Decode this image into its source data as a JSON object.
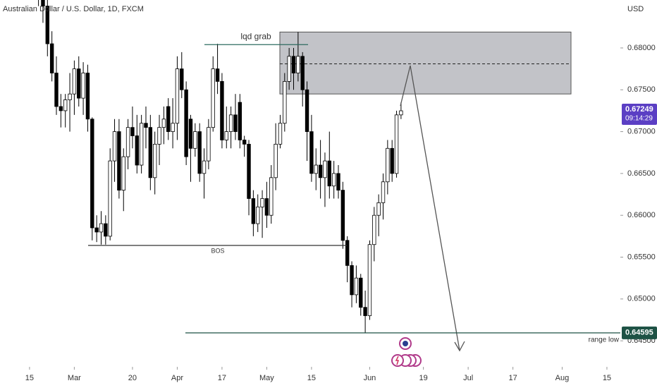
{
  "chart_data": {
    "type": "candlestick",
    "title": "Australian Dollar / U.S. Dollar, 1D, FXCM",
    "currency": "USD",
    "up_color": "#ffffff",
    "down_color": "#000000",
    "x": [
      2,
      3,
      4,
      5,
      6,
      7,
      8,
      9,
      10,
      11,
      12,
      13,
      14,
      15,
      16,
      17,
      18,
      19,
      20,
      21,
      22,
      23,
      24,
      25,
      26,
      27,
      28,
      29,
      30,
      31,
      32,
      33,
      34,
      35,
      36,
      37,
      38,
      39,
      40,
      41,
      42,
      43,
      44,
      45,
      46,
      47,
      48,
      49,
      50,
      51,
      52,
      53,
      54,
      55,
      56,
      57,
      58,
      59,
      60,
      61,
      62,
      63,
      64,
      65,
      66,
      67,
      68,
      69,
      70,
      71,
      72,
      73,
      74,
      75,
      76,
      77,
      78,
      79,
      80,
      81,
      82,
      83
    ],
    "ohlc": [
      [
        0.688,
        0.692,
        0.685,
        0.687
      ],
      [
        0.687,
        0.689,
        0.683,
        0.685
      ],
      [
        0.685,
        0.6865,
        0.679,
        0.6805
      ],
      [
        0.6805,
        0.682,
        0.676,
        0.677
      ],
      [
        0.677,
        0.679,
        0.672,
        0.673
      ],
      [
        0.673,
        0.6745,
        0.6705,
        0.6725
      ],
      [
        0.6725,
        0.6745,
        0.6705,
        0.6738
      ],
      [
        0.6738,
        0.677,
        0.67,
        0.6745
      ],
      [
        0.6745,
        0.6785,
        0.672,
        0.6775
      ],
      [
        0.6775,
        0.679,
        0.673,
        0.674
      ],
      [
        0.674,
        0.6783,
        0.672,
        0.677
      ],
      [
        0.677,
        0.678,
        0.67,
        0.6715
      ],
      [
        0.6715,
        0.6717,
        0.657,
        0.6585
      ],
      [
        0.6585,
        0.66,
        0.6568,
        0.658
      ],
      [
        0.658,
        0.6605,
        0.6565,
        0.659
      ],
      [
        0.659,
        0.66,
        0.6565,
        0.6575
      ],
      [
        0.6575,
        0.668,
        0.657,
        0.6665
      ],
      [
        0.6665,
        0.6715,
        0.664,
        0.67
      ],
      [
        0.67,
        0.6715,
        0.662,
        0.663
      ],
      [
        0.663,
        0.668,
        0.6605,
        0.667
      ],
      [
        0.667,
        0.6715,
        0.6655,
        0.6705
      ],
      [
        0.6705,
        0.673,
        0.668,
        0.6695
      ],
      [
        0.6695,
        0.672,
        0.665,
        0.666
      ],
      [
        0.666,
        0.672,
        0.665,
        0.671
      ],
      [
        0.671,
        0.673,
        0.668,
        0.6705
      ],
      [
        0.6705,
        0.672,
        0.663,
        0.6645
      ],
      [
        0.6645,
        0.67,
        0.6625,
        0.6685
      ],
      [
        0.6685,
        0.672,
        0.666,
        0.6705
      ],
      [
        0.6705,
        0.673,
        0.6685,
        0.6715
      ],
      [
        0.673,
        0.674,
        0.669,
        0.67
      ],
      [
        0.67,
        0.674,
        0.668,
        0.671
      ],
      [
        0.671,
        0.679,
        0.669,
        0.6775
      ],
      [
        0.6775,
        0.6795,
        0.674,
        0.675
      ],
      [
        0.675,
        0.676,
        0.666,
        0.667
      ],
      [
        0.6715,
        0.672,
        0.664,
        0.668
      ],
      [
        0.668,
        0.671,
        0.667,
        0.67
      ],
      [
        0.67,
        0.671,
        0.664,
        0.665
      ],
      [
        0.665,
        0.668,
        0.662,
        0.6665
      ],
      [
        0.6665,
        0.6715,
        0.6655,
        0.6705
      ],
      [
        0.6705,
        0.679,
        0.67,
        0.6775
      ],
      [
        0.6775,
        0.6805,
        0.6745,
        0.676
      ],
      [
        0.676,
        0.677,
        0.668,
        0.669
      ],
      [
        0.669,
        0.673,
        0.668,
        0.67
      ],
      [
        0.67,
        0.673,
        0.668,
        0.672
      ],
      [
        0.672,
        0.6745,
        0.669,
        0.67
      ],
      [
        0.6735,
        0.6745,
        0.668,
        0.669
      ],
      [
        0.669,
        0.6695,
        0.667,
        0.6685
      ],
      [
        0.6685,
        0.669,
        0.66,
        0.662
      ],
      [
        0.662,
        0.663,
        0.6575,
        0.659
      ],
      [
        0.659,
        0.6625,
        0.658,
        0.661
      ],
      [
        0.661,
        0.663,
        0.6573,
        0.662
      ],
      [
        0.662,
        0.664,
        0.6585,
        0.66
      ],
      [
        0.66,
        0.666,
        0.659,
        0.6645
      ],
      [
        0.6645,
        0.671,
        0.663,
        0.6685
      ],
      [
        0.6685,
        0.672,
        0.668,
        0.671
      ],
      [
        0.671,
        0.677,
        0.67,
        0.676
      ],
      [
        0.676,
        0.68,
        0.675,
        0.679
      ],
      [
        0.679,
        0.68,
        0.675,
        0.677
      ],
      [
        0.677,
        0.6819,
        0.676,
        0.679
      ],
      [
        0.679,
        0.6795,
        0.673,
        0.675
      ],
      [
        0.675,
        0.676,
        0.6665,
        0.67
      ],
      [
        0.67,
        0.672,
        0.664,
        0.665
      ],
      [
        0.665,
        0.668,
        0.663,
        0.666
      ],
      [
        0.666,
        0.669,
        0.662,
        0.6645
      ],
      [
        0.6645,
        0.6675,
        0.661,
        0.6665
      ],
      [
        0.6665,
        0.67,
        0.662,
        0.6635
      ],
      [
        0.6635,
        0.6665,
        0.662,
        0.665
      ],
      [
        0.665,
        0.666,
        0.662,
        0.663
      ],
      [
        0.663,
        0.664,
        0.656,
        0.657
      ],
      [
        0.657,
        0.6575,
        0.652,
        0.654
      ],
      [
        0.654,
        0.6545,
        0.649,
        0.6505
      ],
      [
        0.6505,
        0.654,
        0.6495,
        0.6525
      ],
      [
        0.6525,
        0.653,
        0.648,
        0.649
      ],
      [
        0.649,
        0.651,
        0.6459,
        0.648
      ],
      [
        0.648,
        0.657,
        0.6475,
        0.6565
      ],
      [
        0.6565,
        0.661,
        0.6545,
        0.66
      ],
      [
        0.66,
        0.6625,
        0.6575,
        0.6615
      ],
      [
        0.6615,
        0.665,
        0.6595,
        0.664
      ],
      [
        0.664,
        0.669,
        0.6625,
        0.668
      ],
      [
        0.668,
        0.669,
        0.664,
        0.665
      ],
      [
        0.665,
        0.6725,
        0.6645,
        0.672
      ],
      [
        0.672,
        0.6735,
        0.6715,
        0.67249
      ]
    ],
    "xlim": [
      -6.6,
      132
    ],
    "xticks": [
      {
        "value": 0,
        "label": "15"
      },
      {
        "value": 10,
        "label": "Mar"
      },
      {
        "value": 23,
        "label": "20"
      },
      {
        "value": 33,
        "label": "Apr"
      },
      {
        "value": 43,
        "label": "17"
      },
      {
        "value": 53,
        "label": "May"
      },
      {
        "value": 63,
        "label": "15"
      },
      {
        "value": 76,
        "label": "Jun"
      },
      {
        "value": 88,
        "label": "19"
      },
      {
        "value": 98,
        "label": "Jul"
      },
      {
        "value": 108,
        "label": "17"
      },
      {
        "value": 119,
        "label": "Aug"
      },
      {
        "value": 129,
        "label": "15"
      }
    ],
    "ylim": [
      0.64189,
      0.68573
    ],
    "yticks": [
      {
        "value": 0.645,
        "label": "0.64500"
      },
      {
        "value": 0.65,
        "label": "0.65000"
      },
      {
        "value": 0.655,
        "label": "0.65500"
      },
      {
        "value": 0.66,
        "label": "0.66000"
      },
      {
        "value": 0.665,
        "label": "0.66500"
      },
      {
        "value": 0.67,
        "label": "0.67000"
      },
      {
        "value": 0.675,
        "label": "0.67500"
      },
      {
        "value": 0.68,
        "label": "0.68000"
      }
    ],
    "last_price": {
      "value": 0.67249,
      "label": "0.67249"
    },
    "countdown": "09:14:29",
    "zone": {
      "low": 0.6745,
      "high": 0.6819,
      "mid": 0.6781
    },
    "levels": [
      {
        "label": "lqd grab",
        "value": 0.6804
      },
      {
        "label": "BOS",
        "value": 0.6564
      },
      {
        "label": "range low",
        "value": 0.64595,
        "price_label": "0.64595"
      }
    ]
  }
}
